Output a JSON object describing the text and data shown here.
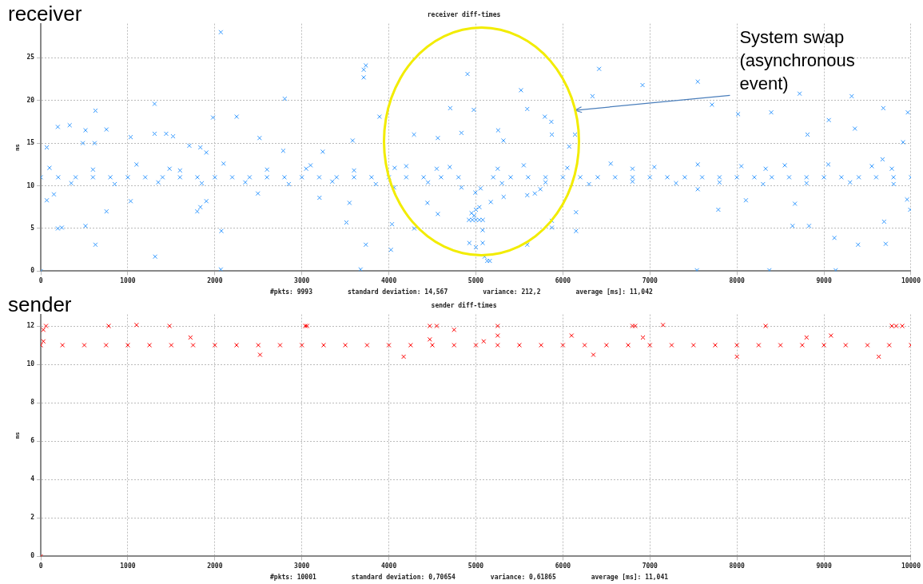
{
  "chart_data": [
    {
      "type": "scatter",
      "title": "receiver diff-times",
      "subtitle": "receiver",
      "ylabel": "ms",
      "marker": "cross",
      "grid": true,
      "xlim": [
        0,
        10000
      ],
      "xticks": [
        0,
        1000,
        2000,
        3000,
        4000,
        5000,
        6000,
        7000,
        8000,
        9000,
        10000
      ],
      "ylim": [
        0,
        29
      ],
      "yticks": [
        0,
        5,
        10,
        15,
        20,
        25
      ],
      "series": [
        {
          "color": "#3399ff",
          "x": [
            0,
            200,
            400,
            600,
            800,
            1000,
            1200,
            1400,
            1600,
            1800,
            2000,
            2200,
            2400,
            2600,
            2800,
            3000,
            3200,
            3400,
            3600,
            3800,
            4000,
            4200,
            4400,
            4600,
            4800,
            5200,
            5400,
            5600,
            5800,
            6000,
            6200,
            6400,
            6600,
            6800,
            7000,
            7200,
            7400,
            7600,
            7800,
            8000,
            8200,
            8400,
            8600,
            8800,
            9000,
            9200,
            9400,
            9600,
            9800,
            10000,
            100,
            350,
            600,
            850,
            1100,
            1350,
            1600,
            1850,
            2100,
            2350,
            2600,
            2850,
            3100,
            3350,
            3600,
            3850,
            4200,
            4450,
            4700,
            5300,
            5550,
            5800,
            6050,
            6300,
            6550,
            6800,
            7050,
            7300,
            7550,
            7800,
            8050,
            8300,
            8550,
            8800,
            9050,
            9300,
            9550,
            9800,
            1480,
            3050,
            4550,
            5250,
            6800,
            8330,
            9780,
            4920,
            4960,
            5000,
            5040,
            5080,
            4950,
            5000,
            5040,
            4980,
            5130,
            5160,
            5100,
            5078,
            5078,
            4925,
            5000,
            0,
            2069,
            628,
            1308,
            196,
            332,
            514,
            755,
            1308,
            1441,
            1520,
            1033,
            483,
            619,
            1707,
            1834,
            1903,
            69,
            1979,
            2251,
            514,
            196,
            242,
            628,
            1314,
            2075,
            2069,
            1033,
            755,
            1798,
            1834,
            1903,
            69,
            151,
            2804,
            2514,
            2786,
            3584,
            3240,
            2495,
            3203,
            3548,
            3512,
            3711,
            3735,
            3711,
            4904,
            5518,
            6340,
            4705,
            4976,
            5590,
            3892,
            5792,
            5867,
            4289,
            4834,
            5256,
            5873,
            6139,
            4563,
            5316,
            6072,
            4066,
            4060,
            4834,
            4443,
            4563,
            4994,
            5054,
            5172,
            5319,
            5590,
            5678,
            5741,
            5873,
            5873,
            6151,
            6151,
            4292,
            4036,
            4024,
            5590,
            3735,
            3675,
            6416,
            6915,
            7550,
            7713,
            8720,
            9319,
            9682,
            8013,
            8394,
            8811,
            9056,
            9355,
            9673,
            9909,
            9964,
            8103,
            8666,
            8829,
            8639,
            9120,
            9392,
            9691,
            9710,
            9955,
            9991,
            7550,
            7786,
            7540,
            8373,
            9135
          ],
          "values": [
            11,
            11,
            11,
            11,
            11,
            11,
            11,
            11,
            11,
            11,
            11,
            11,
            11,
            11,
            11,
            11,
            11,
            11,
            11,
            11,
            11,
            11,
            11,
            11,
            11,
            11,
            11,
            11,
            11,
            11,
            11,
            11,
            11,
            11,
            11,
            11,
            11,
            11,
            11,
            11,
            11,
            11,
            11,
            11,
            11,
            11,
            11,
            11,
            11,
            11,
            12.1,
            10.3,
            11.9,
            10.2,
            12.5,
            10.4,
            11.8,
            10.3,
            12.6,
            10.4,
            11.9,
            10.2,
            12.4,
            10.5,
            11.8,
            10.2,
            12.3,
            10.4,
            12.2,
            10.3,
            12.4,
            10.4,
            12.1,
            10.2,
            12.6,
            10.5,
            12.2,
            10.3,
            12.5,
            10.4,
            12.3,
            10.2,
            12.4,
            10.3,
            12.5,
            10.4,
            12.3,
            10.2,
            12,
            12,
            12,
            12,
            12,
            12,
            12,
            6,
            6,
            6,
            6,
            6,
            6.8,
            7.2,
            7.5,
            6.5,
            1.2,
            1.2,
            1.7,
            4.8,
            3.3,
            3.3,
            2.8,
            0,
            28,
            18.8,
            19.6,
            16.9,
            17.1,
            16.5,
            16.6,
            16.1,
            16.1,
            15.8,
            15.7,
            15,
            15,
            14.7,
            14.5,
            13.9,
            14.5,
            18,
            18.1,
            5.3,
            5,
            5.1,
            3.1,
            1.7,
            4.7,
            0.2,
            8.2,
            7,
            7,
            7.5,
            8.2,
            8.3,
            9,
            20.2,
            15.6,
            14.1,
            15.3,
            14,
            9.1,
            8.6,
            8,
            5.7,
            23.6,
            24.1,
            22.7,
            23.1,
            21.2,
            20.5,
            19.1,
            18.9,
            19,
            18.1,
            18.1,
            17.5,
            16,
            16.2,
            16.5,
            16,
            16,
            15.6,
            15.3,
            14.6,
            12.1,
            9.8,
            9.8,
            8,
            6.7,
            9.2,
            9.7,
            8.1,
            8.7,
            8.9,
            9.1,
            9.6,
            5.9,
            5.1,
            6.9,
            4.7,
            5,
            5.5,
            2.5,
            3.1,
            3.1,
            0.2,
            23.7,
            21.8,
            22.2,
            19.5,
            20.8,
            20.5,
            19.1,
            18.4,
            18.6,
            16,
            17.7,
            16.7,
            13.1,
            15.1,
            18.6,
            8.3,
            7.9,
            5.3,
            5.3,
            3.9,
            3.1,
            5.8,
            3.2,
            8.4,
            7.2,
            9.6,
            7.2,
            0.1,
            0.1,
            0.1
          ]
        }
      ],
      "annotations": [
        "#pkts: 9993",
        "standard deviation: 14,567",
        "variance: 212,2",
        "average [ms]: 11,042",
        "System swap (asynchronous event)"
      ]
    },
    {
      "type": "scatter",
      "title": "sender diff-times",
      "subtitle": "sender",
      "ylabel": "ms",
      "marker": "cross",
      "grid": true,
      "xlim": [
        0,
        10000
      ],
      "xticks": [
        0,
        1000,
        2000,
        3000,
        4000,
        5000,
        6000,
        7000,
        8000,
        9000,
        10000
      ],
      "ylim": [
        0,
        12.6
      ],
      "yticks": [
        0,
        2,
        4,
        6,
        8,
        10,
        12
      ],
      "series": [
        {
          "color": "#ff0000",
          "x": [
            0,
            250,
            500,
            750,
            1000,
            1250,
            1500,
            1750,
            2000,
            2250,
            2500,
            2750,
            3000,
            3250,
            3500,
            3750,
            4000,
            4250,
            4500,
            4750,
            5000,
            5250,
            5500,
            5750,
            6000,
            6250,
            6500,
            6750,
            7000,
            7250,
            7500,
            7750,
            8000,
            8250,
            8500,
            8750,
            9000,
            9250,
            9500,
            9750,
            10000,
            0,
            30,
            30,
            60,
            780,
            1100,
            1480,
            1720,
            2520,
            3040,
            3060,
            4170,
            4470,
            4470,
            4550,
            4750,
            5090,
            5250,
            5250,
            6100,
            6350,
            6800,
            6830,
            6920,
            7150,
            8000,
            8330,
            8800,
            9080,
            9630,
            9780,
            9830,
            9900
          ],
          "values": [
            11,
            11,
            11,
            11,
            11,
            11,
            11,
            11,
            11,
            11,
            11,
            11,
            11,
            11,
            11,
            11,
            11,
            11,
            11,
            11,
            11,
            11,
            11,
            11,
            11,
            11,
            11,
            11,
            11,
            11,
            11,
            11,
            11,
            11,
            11,
            11,
            11,
            11,
            11,
            11,
            11,
            0,
            11.8,
            11.2,
            12,
            12,
            12.05,
            12,
            11.4,
            10.5,
            12,
            12,
            10.4,
            12,
            11.3,
            12,
            11.8,
            11.2,
            12,
            11.5,
            11.5,
            10.5,
            12,
            12,
            11.4,
            12.05,
            10.4,
            12,
            11.4,
            11.5,
            10.4,
            12,
            12,
            12
          ]
        }
      ],
      "annotations": [
        "#pkts: 10001",
        "standard deviation: 0,70654",
        "variance: 0,61865",
        "average [ms]: 11,041"
      ]
    }
  ]
}
